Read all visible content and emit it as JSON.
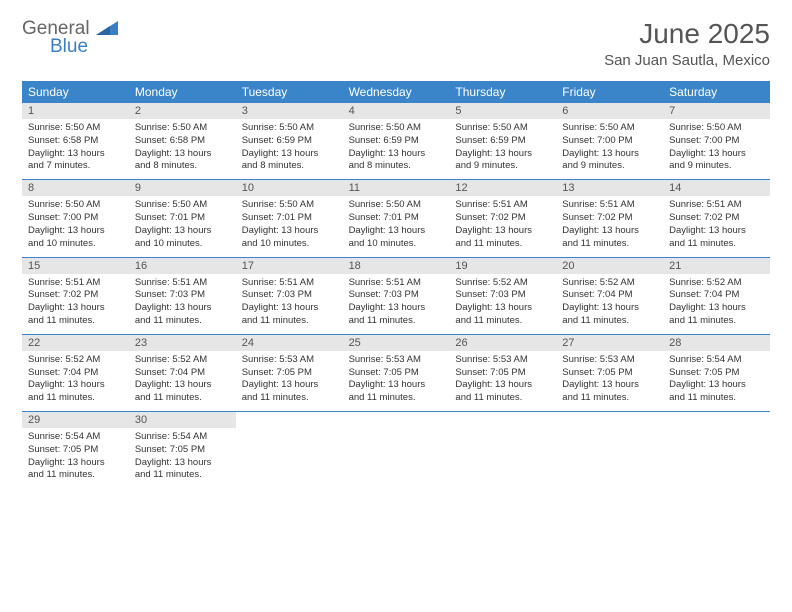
{
  "logo": {
    "text_general": "General",
    "text_blue": "Blue"
  },
  "header": {
    "month": "June 2025",
    "location": "San Juan Sautla, Mexico"
  },
  "colors": {
    "header_bg": "#3a85c9",
    "daynum_bg": "#e6e6e6",
    "logo_blue": "#3a7fc4",
    "logo_gray": "#666666",
    "rule": "#3a85c9"
  },
  "day_labels": [
    "Sunday",
    "Monday",
    "Tuesday",
    "Wednesday",
    "Thursday",
    "Friday",
    "Saturday"
  ],
  "weeks": [
    [
      {
        "n": "1",
        "sunrise": "Sunrise: 5:50 AM",
        "sunset": "Sunset: 6:58 PM",
        "daylight": "Daylight: 13 hours and 7 minutes."
      },
      {
        "n": "2",
        "sunrise": "Sunrise: 5:50 AM",
        "sunset": "Sunset: 6:58 PM",
        "daylight": "Daylight: 13 hours and 8 minutes."
      },
      {
        "n": "3",
        "sunrise": "Sunrise: 5:50 AM",
        "sunset": "Sunset: 6:59 PM",
        "daylight": "Daylight: 13 hours and 8 minutes."
      },
      {
        "n": "4",
        "sunrise": "Sunrise: 5:50 AM",
        "sunset": "Sunset: 6:59 PM",
        "daylight": "Daylight: 13 hours and 8 minutes."
      },
      {
        "n": "5",
        "sunrise": "Sunrise: 5:50 AM",
        "sunset": "Sunset: 6:59 PM",
        "daylight": "Daylight: 13 hours and 9 minutes."
      },
      {
        "n": "6",
        "sunrise": "Sunrise: 5:50 AM",
        "sunset": "Sunset: 7:00 PM",
        "daylight": "Daylight: 13 hours and 9 minutes."
      },
      {
        "n": "7",
        "sunrise": "Sunrise: 5:50 AM",
        "sunset": "Sunset: 7:00 PM",
        "daylight": "Daylight: 13 hours and 9 minutes."
      }
    ],
    [
      {
        "n": "8",
        "sunrise": "Sunrise: 5:50 AM",
        "sunset": "Sunset: 7:00 PM",
        "daylight": "Daylight: 13 hours and 10 minutes."
      },
      {
        "n": "9",
        "sunrise": "Sunrise: 5:50 AM",
        "sunset": "Sunset: 7:01 PM",
        "daylight": "Daylight: 13 hours and 10 minutes."
      },
      {
        "n": "10",
        "sunrise": "Sunrise: 5:50 AM",
        "sunset": "Sunset: 7:01 PM",
        "daylight": "Daylight: 13 hours and 10 minutes."
      },
      {
        "n": "11",
        "sunrise": "Sunrise: 5:50 AM",
        "sunset": "Sunset: 7:01 PM",
        "daylight": "Daylight: 13 hours and 10 minutes."
      },
      {
        "n": "12",
        "sunrise": "Sunrise: 5:51 AM",
        "sunset": "Sunset: 7:02 PM",
        "daylight": "Daylight: 13 hours and 11 minutes."
      },
      {
        "n": "13",
        "sunrise": "Sunrise: 5:51 AM",
        "sunset": "Sunset: 7:02 PM",
        "daylight": "Daylight: 13 hours and 11 minutes."
      },
      {
        "n": "14",
        "sunrise": "Sunrise: 5:51 AM",
        "sunset": "Sunset: 7:02 PM",
        "daylight": "Daylight: 13 hours and 11 minutes."
      }
    ],
    [
      {
        "n": "15",
        "sunrise": "Sunrise: 5:51 AM",
        "sunset": "Sunset: 7:02 PM",
        "daylight": "Daylight: 13 hours and 11 minutes."
      },
      {
        "n": "16",
        "sunrise": "Sunrise: 5:51 AM",
        "sunset": "Sunset: 7:03 PM",
        "daylight": "Daylight: 13 hours and 11 minutes."
      },
      {
        "n": "17",
        "sunrise": "Sunrise: 5:51 AM",
        "sunset": "Sunset: 7:03 PM",
        "daylight": "Daylight: 13 hours and 11 minutes."
      },
      {
        "n": "18",
        "sunrise": "Sunrise: 5:51 AM",
        "sunset": "Sunset: 7:03 PM",
        "daylight": "Daylight: 13 hours and 11 minutes."
      },
      {
        "n": "19",
        "sunrise": "Sunrise: 5:52 AM",
        "sunset": "Sunset: 7:03 PM",
        "daylight": "Daylight: 13 hours and 11 minutes."
      },
      {
        "n": "20",
        "sunrise": "Sunrise: 5:52 AM",
        "sunset": "Sunset: 7:04 PM",
        "daylight": "Daylight: 13 hours and 11 minutes."
      },
      {
        "n": "21",
        "sunrise": "Sunrise: 5:52 AM",
        "sunset": "Sunset: 7:04 PM",
        "daylight": "Daylight: 13 hours and 11 minutes."
      }
    ],
    [
      {
        "n": "22",
        "sunrise": "Sunrise: 5:52 AM",
        "sunset": "Sunset: 7:04 PM",
        "daylight": "Daylight: 13 hours and 11 minutes."
      },
      {
        "n": "23",
        "sunrise": "Sunrise: 5:52 AM",
        "sunset": "Sunset: 7:04 PM",
        "daylight": "Daylight: 13 hours and 11 minutes."
      },
      {
        "n": "24",
        "sunrise": "Sunrise: 5:53 AM",
        "sunset": "Sunset: 7:05 PM",
        "daylight": "Daylight: 13 hours and 11 minutes."
      },
      {
        "n": "25",
        "sunrise": "Sunrise: 5:53 AM",
        "sunset": "Sunset: 7:05 PM",
        "daylight": "Daylight: 13 hours and 11 minutes."
      },
      {
        "n": "26",
        "sunrise": "Sunrise: 5:53 AM",
        "sunset": "Sunset: 7:05 PM",
        "daylight": "Daylight: 13 hours and 11 minutes."
      },
      {
        "n": "27",
        "sunrise": "Sunrise: 5:53 AM",
        "sunset": "Sunset: 7:05 PM",
        "daylight": "Daylight: 13 hours and 11 minutes."
      },
      {
        "n": "28",
        "sunrise": "Sunrise: 5:54 AM",
        "sunset": "Sunset: 7:05 PM",
        "daylight": "Daylight: 13 hours and 11 minutes."
      }
    ],
    [
      {
        "n": "29",
        "sunrise": "Sunrise: 5:54 AM",
        "sunset": "Sunset: 7:05 PM",
        "daylight": "Daylight: 13 hours and 11 minutes."
      },
      {
        "n": "30",
        "sunrise": "Sunrise: 5:54 AM",
        "sunset": "Sunset: 7:05 PM",
        "daylight": "Daylight: 13 hours and 11 minutes."
      },
      null,
      null,
      null,
      null,
      null
    ]
  ]
}
